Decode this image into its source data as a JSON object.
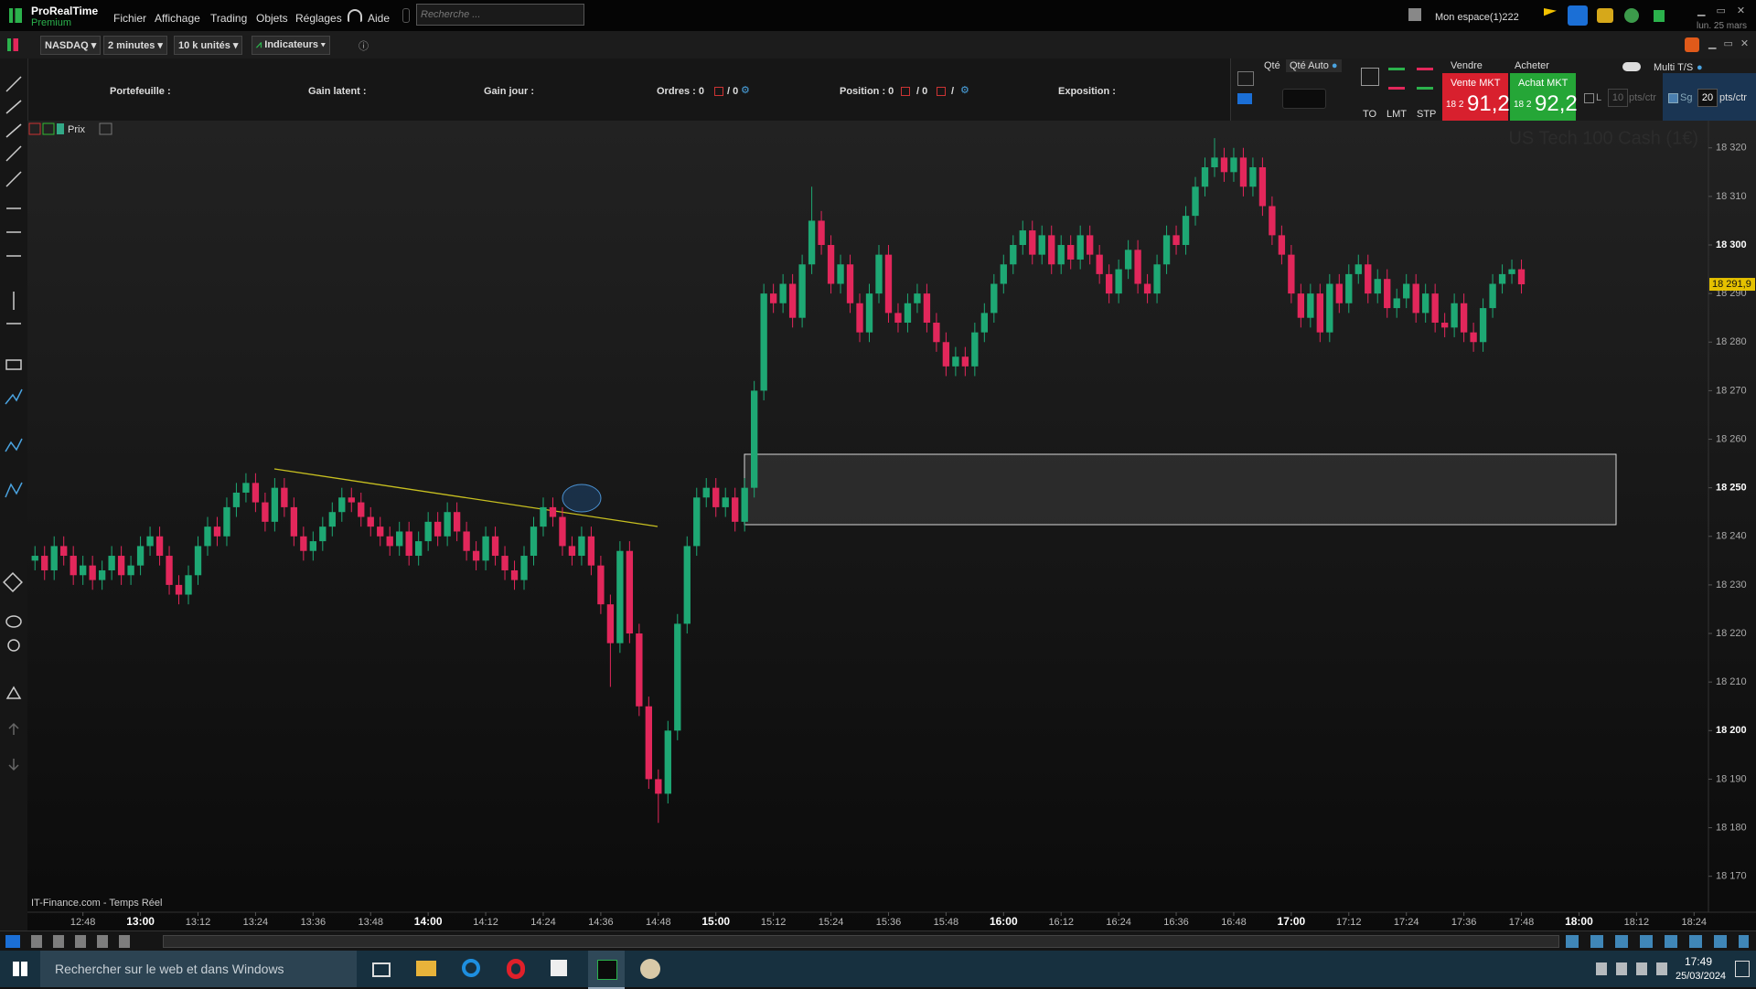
{
  "app": {
    "logo": "ProRealTime",
    "edition": "Premium",
    "menu": [
      "Fichier",
      "Affichage",
      "Trading",
      "Objets",
      "Réglages"
    ],
    "help": "Aide",
    "search_placeholder": "Recherche ...",
    "workspace": "Mon espace(1)222",
    "date": "lun. 25 mars"
  },
  "toolbar": {
    "instrument": "NASDAQ",
    "timeframe": "2 minutes",
    "units": "10 k unités",
    "indicators": "Indicateurs"
  },
  "info_bar": {
    "portfolio": "Portefeuille :",
    "unrealized": "Gain latent :",
    "daily": "Gain jour :",
    "orders": "Ordres : 0",
    "orders_2": "/ 0",
    "position": "Position : 0",
    "position_2": "/ 0",
    "position_3": "/",
    "exposure": "Exposition :"
  },
  "order_panel": {
    "qty": "Qté",
    "qty_auto": "Qté Auto",
    "order_types": [
      "TO",
      "LMT",
      "STP"
    ],
    "sell": "Vendre",
    "buy": "Acheter",
    "sell_mkt": "Vente MKT",
    "buy_mkt": "Achat MKT",
    "sell_price_prefix": "18 2",
    "sell_price": "91,2",
    "buy_price_prefix": "18 2",
    "buy_price": "92,2",
    "l_label": "L",
    "l_value": "10",
    "l_unit": "pts/ctr",
    "sg_label": "Sg",
    "sg_value": "20",
    "sg_unit": "pts/ctr",
    "multi": "Multi T/S"
  },
  "chart_header": {
    "price": "Prix"
  },
  "chart_data": {
    "type": "candlestick",
    "title": "US Tech 100 Cash (1€)",
    "source": "IT-Finance.com - Temps Réel",
    "up_color": "#1ea874",
    "down_color": "#e2275b",
    "x": [
      758,
      760,
      762,
      764,
      766,
      768,
      770,
      772,
      774,
      776,
      778,
      780,
      782,
      784,
      786,
      788,
      790,
      792,
      794,
      796,
      798,
      800,
      802,
      804,
      806,
      808,
      810,
      812,
      814,
      816,
      818,
      820,
      822,
      824,
      826,
      828,
      830,
      832,
      834,
      836,
      838,
      840,
      842,
      844,
      846,
      848,
      850,
      852,
      854,
      856,
      858,
      860,
      862,
      864,
      866,
      868,
      870,
      872,
      874,
      876,
      878,
      880,
      882,
      884,
      886,
      888,
      890,
      892,
      894,
      896,
      898,
      900,
      902,
      904,
      906,
      908,
      910,
      912,
      914,
      916,
      918,
      920,
      922,
      924,
      926,
      928,
      930,
      932,
      934,
      936,
      938,
      940,
      942,
      944,
      946,
      948,
      950,
      952,
      954,
      956,
      958,
      960,
      962,
      964,
      966,
      968,
      970,
      972,
      974,
      976,
      978,
      980,
      982,
      984,
      986,
      988,
      990,
      992,
      994,
      996,
      998,
      1000,
      1002,
      1004,
      1006,
      1008,
      1010,
      1012,
      1014,
      1016,
      1018,
      1020,
      1022,
      1024,
      1026,
      1028,
      1030,
      1032,
      1034,
      1036,
      1038,
      1040,
      1042,
      1044,
      1046,
      1048,
      1050,
      1052,
      1054,
      1056,
      1058,
      1060,
      1062,
      1064,
      1066,
      1068
    ],
    "open": [
      18235,
      18236,
      18233,
      18238,
      18236,
      18232,
      18234,
      18231,
      18233,
      18236,
      18232,
      18234,
      18238,
      18240,
      18236,
      18230,
      18228,
      18232,
      18238,
      18242,
      18240,
      18246,
      18249,
      18251,
      18247,
      18243,
      18250,
      18246,
      18240,
      18237,
      18239,
      18242,
      18245,
      18248,
      18247,
      18244,
      18242,
      18240,
      18238,
      18241,
      18236,
      18239,
      18243,
      18240,
      18245,
      18241,
      18237,
      18235,
      18240,
      18236,
      18233,
      18231,
      18236,
      18242,
      18246,
      18244,
      18238,
      18236,
      18240,
      18234,
      18226,
      18218,
      18237,
      18220,
      18205,
      18190,
      18187,
      18200,
      18222,
      18238,
      18248,
      18250,
      18246,
      18248,
      18243,
      18250,
      18270,
      18290,
      18288,
      18292,
      18285,
      18296,
      18305,
      18300,
      18292,
      18296,
      18288,
      18282,
      18290,
      18298,
      18286,
      18284,
      18288,
      18290,
      18284,
      18280,
      18275,
      18277,
      18275,
      18282,
      18286,
      18292,
      18296,
      18300,
      18303,
      18298,
      18302,
      18296,
      18300,
      18297,
      18302,
      18298,
      18294,
      18290,
      18295,
      18299,
      18292,
      18290,
      18296,
      18302,
      18300,
      18306,
      18312,
      18316,
      18318,
      18315,
      18318,
      18312,
      18316,
      18308,
      18302,
      18298,
      18290,
      18285,
      18290,
      18282,
      18292,
      18288,
      18294,
      18296,
      18290,
      18293,
      18287,
      18289,
      18292,
      18286,
      18290,
      18284,
      18283,
      18288,
      18282,
      18280,
      18287,
      18292,
      18294,
      18295
    ],
    "high": [
      18238,
      18238,
      18240,
      18240,
      18238,
      18236,
      18236,
      18235,
      18238,
      18238,
      18236,
      18240,
      18242,
      18242,
      18238,
      18232,
      18234,
      18240,
      18244,
      18244,
      18248,
      18251,
      18253,
      18253,
      18249,
      18252,
      18252,
      18248,
      18242,
      18241,
      18244,
      18247,
      18250,
      18250,
      18249,
      18246,
      18244,
      18242,
      18243,
      18243,
      18241,
      18245,
      18245,
      18247,
      18247,
      18243,
      18239,
      18242,
      18242,
      18238,
      18235,
      18238,
      18244,
      18248,
      18248,
      18246,
      18240,
      18242,
      18242,
      18236,
      18228,
      18239,
      18239,
      18222,
      18207,
      18192,
      18202,
      18224,
      18240,
      18250,
      18252,
      18252,
      18250,
      18250,
      18252,
      18272,
      18292,
      18292,
      18294,
      18294,
      18298,
      18312,
      18307,
      18302,
      18298,
      18298,
      18290,
      18292,
      18300,
      18300,
      18288,
      18290,
      18292,
      18292,
      18286,
      18282,
      18279,
      18279,
      18284,
      18288,
      18294,
      18298,
      18302,
      18305,
      18305,
      18304,
      18304,
      18302,
      18302,
      18304,
      18304,
      18300,
      18296,
      18297,
      18301,
      18301,
      18294,
      18298,
      18304,
      18304,
      18308,
      18314,
      18318,
      18322,
      18320,
      18320,
      18320,
      18318,
      18318,
      18310,
      18304,
      18300,
      18292,
      18292,
      18292,
      18294,
      18294,
      18296,
      18298,
      18298,
      18295,
      18295,
      18291,
      18294,
      18294,
      18292,
      18292,
      18286,
      18290,
      18290,
      18284,
      18289,
      18294,
      18296,
      18297,
      18297
    ],
    "low": [
      18233,
      18231,
      18231,
      18234,
      18230,
      18230,
      18229,
      18229,
      18231,
      18230,
      18230,
      18232,
      18236,
      18234,
      18228,
      18226,
      18226,
      18230,
      18236,
      18238,
      18238,
      18244,
      18247,
      18245,
      18241,
      18241,
      18244,
      18238,
      18235,
      18235,
      18237,
      18240,
      18243,
      18245,
      18242,
      18240,
      18238,
      18236,
      18236,
      18234,
      18234,
      18237,
      18238,
      18238,
      18239,
      18235,
      18233,
      18233,
      18234,
      18231,
      18229,
      18229,
      18234,
      18240,
      18242,
      18236,
      18234,
      18234,
      18232,
      18224,
      18209,
      18216,
      18218,
      18203,
      18188,
      18181,
      18185,
      18198,
      18220,
      18236,
      18246,
      18244,
      18244,
      18241,
      18241,
      18248,
      18268,
      18286,
      18286,
      18283,
      18283,
      18294,
      18298,
      18290,
      18290,
      18286,
      18280,
      18280,
      18288,
      18284,
      18282,
      18282,
      18286,
      18282,
      18278,
      18273,
      18273,
      18273,
      18273,
      18280,
      18284,
      18290,
      18294,
      18298,
      18296,
      18296,
      18294,
      18294,
      18295,
      18295,
      18296,
      18292,
      18288,
      18288,
      18293,
      18290,
      18288,
      18288,
      18294,
      18298,
      18298,
      18304,
      18310,
      18314,
      18313,
      18313,
      18310,
      18310,
      18306,
      18300,
      18296,
      18288,
      18283,
      18283,
      18280,
      18280,
      18286,
      18286,
      18292,
      18288,
      18288,
      18285,
      18285,
      18287,
      18284,
      18284,
      18282,
      18281,
      18281,
      18280,
      18278,
      18278,
      18285,
      18290,
      18292,
      18290
    ],
    "close": [
      18236,
      18233,
      18238,
      18236,
      18232,
      18234,
      18231,
      18233,
      18236,
      18232,
      18234,
      18238,
      18240,
      18236,
      18230,
      18228,
      18232,
      18238,
      18242,
      18240,
      18246,
      18249,
      18251,
      18247,
      18243,
      18250,
      18246,
      18240,
      18237,
      18239,
      18242,
      18245,
      18248,
      18247,
      18244,
      18242,
      18240,
      18238,
      18241,
      18236,
      18239,
      18243,
      18240,
      18245,
      18241,
      18237,
      18235,
      18240,
      18236,
      18233,
      18231,
      18236,
      18242,
      18246,
      18244,
      18238,
      18236,
      18240,
      18234,
      18226,
      18218,
      18237,
      18220,
      18205,
      18190,
      18187,
      18200,
      18222,
      18238,
      18248,
      18250,
      18246,
      18248,
      18243,
      18250,
      18270,
      18290,
      18288,
      18292,
      18285,
      18296,
      18305,
      18300,
      18292,
      18296,
      18288,
      18282,
      18290,
      18298,
      18286,
      18284,
      18288,
      18290,
      18284,
      18280,
      18275,
      18277,
      18275,
      18282,
      18286,
      18292,
      18296,
      18300,
      18303,
      18298,
      18302,
      18296,
      18300,
      18297,
      18302,
      18298,
      18294,
      18290,
      18295,
      18299,
      18292,
      18290,
      18296,
      18302,
      18300,
      18306,
      18312,
      18316,
      18318,
      18315,
      18318,
      18312,
      18316,
      18308,
      18302,
      18298,
      18290,
      18285,
      18290,
      18282,
      18292,
      18288,
      18294,
      18296,
      18290,
      18293,
      18287,
      18289,
      18292,
      18286,
      18290,
      18284,
      18283,
      18288,
      18282,
      18280,
      18287,
      18292,
      18294,
      18295,
      18291.9
    ],
    "last_label": "18 291,9",
    "xlim": [
      757,
      1107
    ],
    "ylim": [
      18162.6,
      18325.6
    ],
    "xticks": [
      {
        "value": 768,
        "label": "12:48"
      },
      {
        "value": 780,
        "label": "13:00"
      },
      {
        "value": 792,
        "label": "13:12"
      },
      {
        "value": 804,
        "label": "13:24"
      },
      {
        "value": 816,
        "label": "13:36"
      },
      {
        "value": 828,
        "label": "13:48"
      },
      {
        "value": 840,
        "label": "14:00"
      },
      {
        "value": 852,
        "label": "14:12"
      },
      {
        "value": 864,
        "label": "14:24"
      },
      {
        "value": 876,
        "label": "14:36"
      },
      {
        "value": 888,
        "label": "14:48"
      },
      {
        "value": 900,
        "label": "15:00"
      },
      {
        "value": 912,
        "label": "15:12"
      },
      {
        "value": 924,
        "label": "15:24"
      },
      {
        "value": 936,
        "label": "15:36"
      },
      {
        "value": 948,
        "label": "15:48"
      },
      {
        "value": 960,
        "label": "16:00"
      },
      {
        "value": 972,
        "label": "16:12"
      },
      {
        "value": 984,
        "label": "16:24"
      },
      {
        "value": 996,
        "label": "16:36"
      },
      {
        "value": 1008,
        "label": "16:48"
      },
      {
        "value": 1020,
        "label": "17:00"
      },
      {
        "value": 1032,
        "label": "17:12"
      },
      {
        "value": 1044,
        "label": "17:24"
      },
      {
        "value": 1056,
        "label": "17:36"
      },
      {
        "value": 1068,
        "label": "17:48"
      },
      {
        "value": 1080,
        "label": "18:00"
      },
      {
        "value": 1092,
        "label": "18:12"
      },
      {
        "value": 1104,
        "label": "18:24"
      }
    ],
    "yticks": [
      {
        "value": 18170,
        "label": "18 170"
      },
      {
        "value": 18180,
        "label": "18 180"
      },
      {
        "value": 18190,
        "label": "18 190"
      },
      {
        "value": 18200,
        "label": "18 200"
      },
      {
        "value": 18210,
        "label": "18 210"
      },
      {
        "value": 18220,
        "label": "18 220"
      },
      {
        "value": 18230,
        "label": "18 230"
      },
      {
        "value": 18240,
        "label": "18 240"
      },
      {
        "value": 18250,
        "label": "18 250"
      },
      {
        "value": 18260,
        "label": "18 260"
      },
      {
        "value": 18270,
        "label": "18 270"
      },
      {
        "value": 18280,
        "label": "18 280"
      },
      {
        "value": 18290,
        "label": "18 290"
      },
      {
        "value": 18300,
        "label": "18 300"
      },
      {
        "value": 18310,
        "label": "18 310"
      },
      {
        "value": 18320,
        "label": "18 320"
      }
    ]
  },
  "taskbar": {
    "search": "Rechercher sur le web et dans Windows",
    "time": "17:49",
    "date": "25/03/2024"
  }
}
